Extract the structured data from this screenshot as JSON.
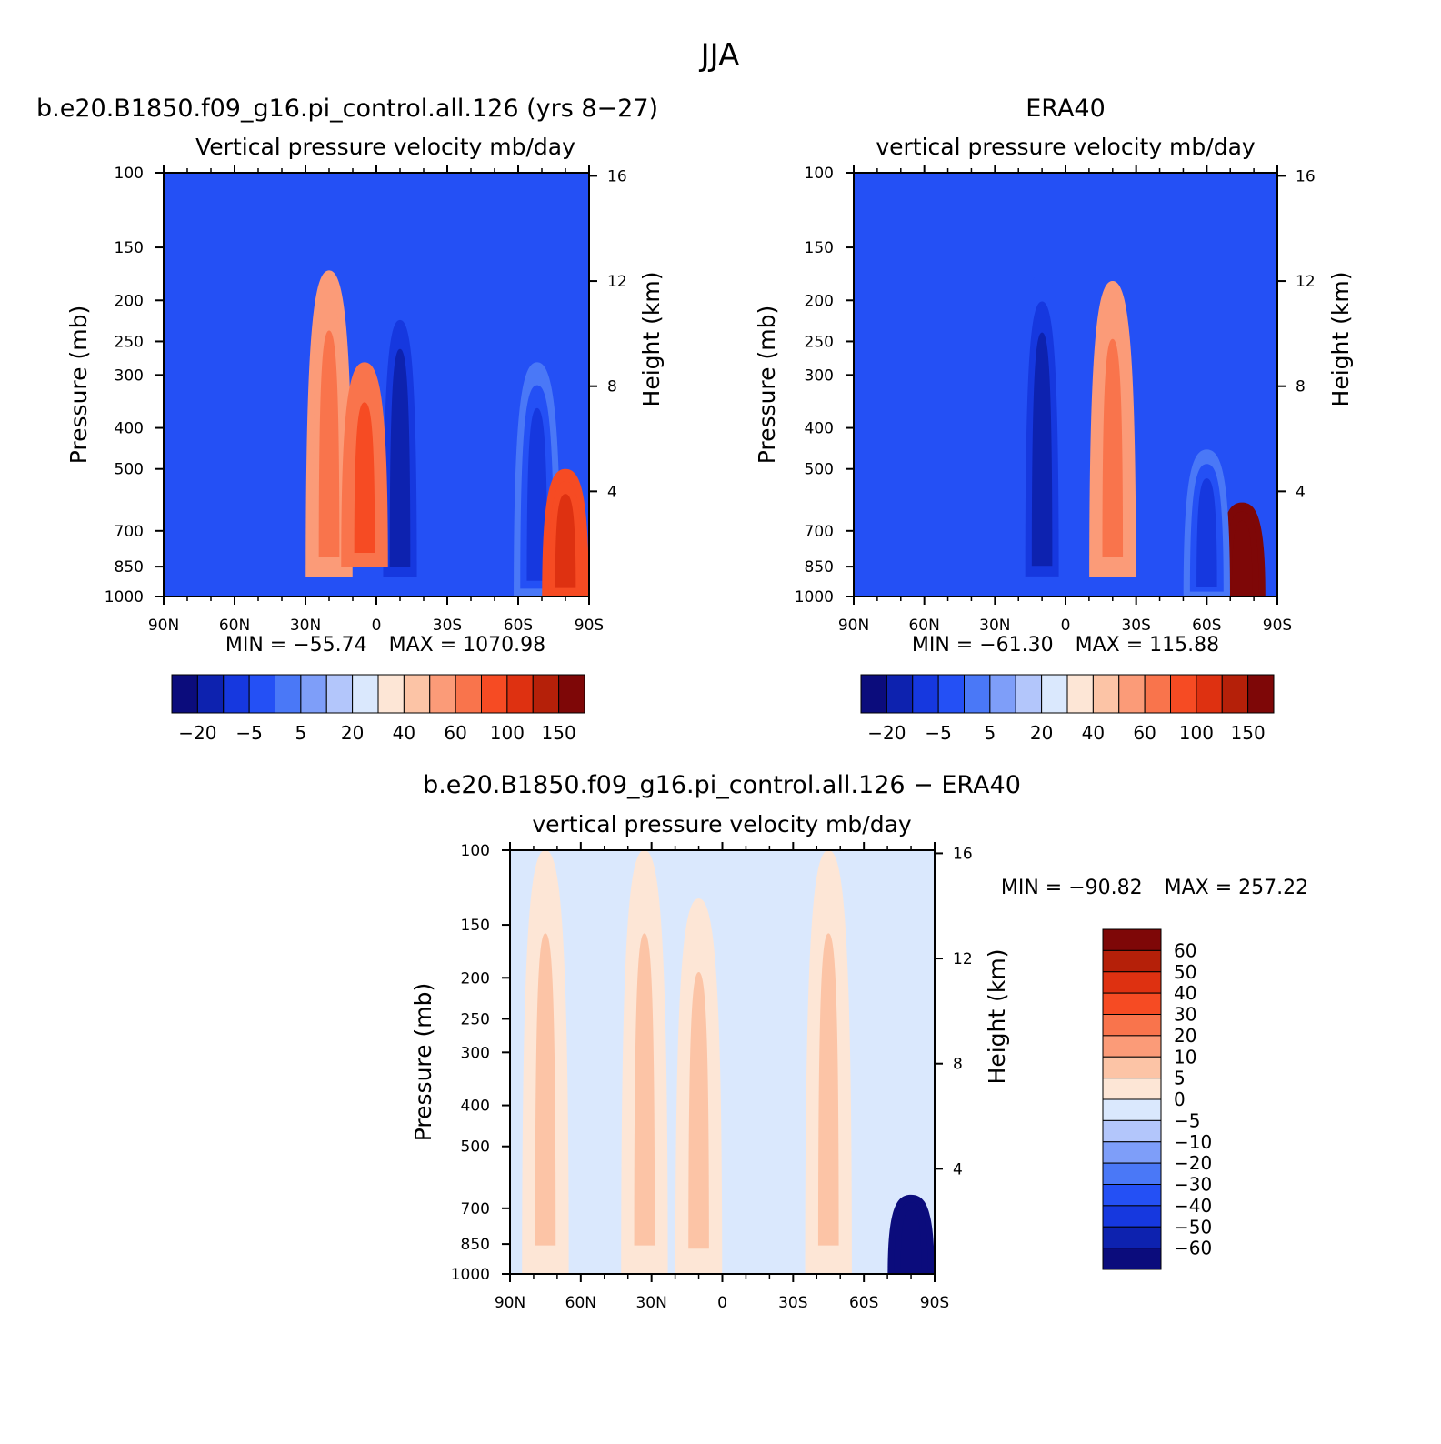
{
  "title": "JJA",
  "colors": {
    "div14": [
      "#0b0c7c",
      "#0d22af",
      "#1638df",
      "#2450f5",
      "#4a78f7",
      "#7e9ef9",
      "#b3c6fb",
      "#dae8fd",
      "#fde6d6",
      "#fcc4a6",
      "#fb9b78",
      "#f9744c",
      "#f64b23",
      "#de3111",
      "#b52009",
      "#7e0707"
    ],
    "div16": [
      "#0b0c7c",
      "#0d22af",
      "#1638df",
      "#2450f5",
      "#4a78f7",
      "#7e9ef9",
      "#b3c6fb",
      "#dae8fd",
      "#fde6d6",
      "#fcc4a6",
      "#fb9b78",
      "#f9744c",
      "#f64b23",
      "#de3111",
      "#b52009",
      "#7e0707"
    ]
  },
  "chart_data": [
    {
      "type": "heatmap",
      "title": "b.e20.B1850.f09_g16.pi_control.all.126 (yrs 8−27)",
      "subtitle": "Vertical pressure velocity   mb/day",
      "ylabel": "Pressure (mb)",
      "y2label": "Height (km)",
      "xlim": [
        90,
        -90
      ],
      "x_ticks": [
        "90N",
        "60N",
        "30N",
        "0",
        "30S",
        "60S",
        "90S"
      ],
      "y_ticks": [
        "100",
        "150",
        "200",
        "250",
        "300",
        "400",
        "500",
        "700",
        "850",
        "1000"
      ],
      "y2_ticks": [
        "16",
        "12",
        "8",
        "4"
      ],
      "min_text": "MIN = −55.74",
      "max_text": "MAX = 1070.98",
      "colorbar": {
        "orientation": "horizontal",
        "labels": [
          "−20",
          "−5",
          "5",
          "20",
          "40",
          "60",
          "100",
          "150"
        ]
      },
      "features": [
        {
          "lat": -10,
          "pmin": 190,
          "pmax": 950,
          "value": -30
        },
        {
          "lat": 20,
          "pmin": 170,
          "pmax": 900,
          "value": 20
        },
        {
          "lat": 5,
          "pmin": 280,
          "pmax": 850,
          "value": 30
        },
        {
          "lat": -68,
          "pmin": 280,
          "pmax": 1000,
          "value": -20
        },
        {
          "lat": -80,
          "pmin": 500,
          "pmax": 1000,
          "value": 40
        }
      ]
    },
    {
      "type": "heatmap",
      "title": "ERA40",
      "subtitle": "vertical pressure velocity   mb/day",
      "ylabel": "Pressure (mb)",
      "y2label": "Height (km)",
      "xlim": [
        90,
        -90
      ],
      "x_ticks": [
        "90N",
        "60N",
        "30N",
        "0",
        "30S",
        "60S",
        "90S"
      ],
      "y_ticks": [
        "100",
        "150",
        "200",
        "250",
        "300",
        "400",
        "500",
        "700",
        "850",
        "1000"
      ],
      "y2_ticks": [
        "16",
        "12",
        "8",
        "4"
      ],
      "min_text": "MIN = −61.30",
      "max_text": "MAX = 115.88",
      "colorbar": {
        "orientation": "horizontal",
        "labels": [
          "−20",
          "−5",
          "5",
          "20",
          "40",
          "60",
          "100",
          "150"
        ]
      },
      "features": [
        {
          "lat": 10,
          "pmin": 170,
          "pmax": 950,
          "value": -30
        },
        {
          "lat": -20,
          "pmin": 180,
          "pmax": 900,
          "value": 20
        },
        {
          "lat": -75,
          "pmin": 600,
          "pmax": 1000,
          "value": 100
        },
        {
          "lat": -60,
          "pmin": 450,
          "pmax": 1000,
          "value": -20
        }
      ]
    },
    {
      "type": "heatmap",
      "title": "b.e20.B1850.f09_g16.pi_control.all.126 − ERA40",
      "subtitle": "vertical pressure velocity   mb/day",
      "ylabel": "Pressure (mb)",
      "y2label": "Height (km)",
      "xlim": [
        90,
        -90
      ],
      "x_ticks": [
        "90N",
        "60N",
        "30N",
        "0",
        "30S",
        "60S",
        "90S"
      ],
      "y_ticks": [
        "100",
        "150",
        "200",
        "250",
        "300",
        "400",
        "500",
        "700",
        "850",
        "1000"
      ],
      "y2_ticks": [
        "16",
        "12",
        "8",
        "4"
      ],
      "min_text": "MIN = −90.82",
      "max_text": "MAX = 257.22",
      "colorbar": {
        "orientation": "vertical",
        "labels": [
          "60",
          "50",
          "40",
          "30",
          "20",
          "10",
          "5",
          "0",
          "−5",
          "−10",
          "−20",
          "−30",
          "−40",
          "−50",
          "−60"
        ]
      },
      "features": [
        {
          "lat": 75,
          "pmin": 100,
          "pmax": 1000,
          "value": 5
        },
        {
          "lat": 33,
          "pmin": 100,
          "pmax": 1000,
          "value": 5
        },
        {
          "lat": 10,
          "pmin": 130,
          "pmax": 1000,
          "value": 5
        },
        {
          "lat": -45,
          "pmin": 100,
          "pmax": 1000,
          "value": 5
        },
        {
          "lat": -80,
          "pmin": 650,
          "pmax": 1000,
          "value": -60
        }
      ]
    }
  ]
}
